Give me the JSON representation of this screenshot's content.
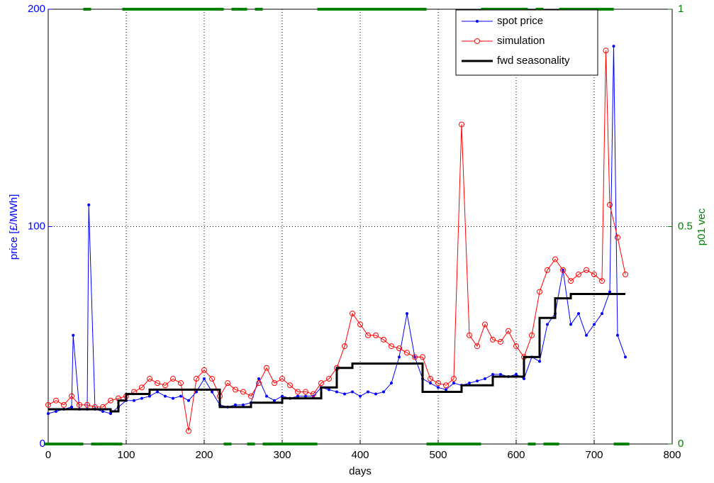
{
  "chart_data": {
    "type": "line",
    "xlabel": "days",
    "ylabel": "price [£/MWh]",
    "y2label": "p01 vec",
    "xlim": [
      0,
      800
    ],
    "xticks": [
      0,
      100,
      200,
      300,
      400,
      500,
      600,
      700,
      800
    ],
    "ylim": [
      0,
      200
    ],
    "yticks": [
      0,
      100,
      200
    ],
    "y2lim": [
      0,
      1
    ],
    "y2ticks": [
      0,
      0.5,
      1
    ],
    "grid": true,
    "legend": "top-right",
    "series": [
      {
        "name": "spot price",
        "color": "#0000ff",
        "marker": "dot",
        "x": [
          0,
          10,
          20,
          30,
          32,
          40,
          50,
          52,
          60,
          70,
          80,
          90,
          100,
          110,
          120,
          130,
          140,
          150,
          160,
          170,
          180,
          190,
          200,
          210,
          220,
          230,
          240,
          250,
          260,
          270,
          280,
          290,
          300,
          310,
          320,
          330,
          340,
          350,
          360,
          370,
          380,
          390,
          400,
          410,
          420,
          430,
          440,
          450,
          460,
          470,
          480,
          490,
          500,
          510,
          520,
          530,
          540,
          550,
          560,
          570,
          580,
          590,
          600,
          610,
          620,
          630,
          640,
          650,
          660,
          670,
          680,
          690,
          700,
          710,
          720,
          725,
          730,
          740
        ],
        "values": [
          14,
          15,
          16,
          17,
          50,
          16,
          16,
          110,
          16,
          15,
          14,
          17,
          20,
          20,
          21,
          22,
          24,
          22,
          21,
          22,
          20,
          24,
          30,
          24,
          18,
          17,
          18,
          18,
          19,
          30,
          22,
          20,
          22,
          21,
          22,
          22,
          22,
          26,
          25,
          24,
          23,
          24,
          22,
          24,
          23,
          24,
          28,
          40,
          60,
          40,
          30,
          28,
          26,
          25,
          28,
          27,
          28,
          29,
          30,
          32,
          32,
          31,
          32,
          30,
          40,
          38,
          55,
          60,
          80,
          55,
          60,
          50,
          55,
          60,
          70,
          183,
          50,
          40
        ]
      },
      {
        "name": "simulation",
        "color": "#ff0000",
        "marker": "circle",
        "x": [
          0,
          10,
          20,
          30,
          40,
          50,
          60,
          70,
          80,
          90,
          100,
          110,
          120,
          130,
          140,
          150,
          160,
          170,
          180,
          190,
          200,
          210,
          220,
          230,
          240,
          250,
          260,
          270,
          280,
          290,
          300,
          310,
          320,
          330,
          340,
          350,
          360,
          370,
          380,
          390,
          400,
          410,
          420,
          430,
          440,
          450,
          460,
          470,
          480,
          490,
          500,
          510,
          520,
          530,
          540,
          550,
          560,
          570,
          580,
          590,
          600,
          610,
          620,
          630,
          640,
          650,
          660,
          670,
          680,
          690,
          700,
          710,
          715,
          720,
          730,
          740
        ],
        "values": [
          18,
          20,
          18,
          22,
          18,
          18,
          17,
          17,
          20,
          21,
          22,
          24,
          26,
          30,
          28,
          27,
          30,
          28,
          6,
          30,
          34,
          30,
          22,
          28,
          25,
          24,
          22,
          28,
          35,
          28,
          30,
          27,
          24,
          24,
          23,
          28,
          30,
          35,
          45,
          60,
          55,
          50,
          50,
          48,
          45,
          44,
          42,
          40,
          40,
          30,
          28,
          27,
          30,
          147,
          50,
          45,
          55,
          48,
          47,
          52,
          45,
          40,
          50,
          70,
          80,
          85,
          80,
          75,
          78,
          80,
          78,
          75,
          181,
          110,
          95,
          78
        ]
      },
      {
        "name": "fwd seasonality",
        "color": "#000000",
        "marker": "none",
        "x": [
          0,
          80,
          80,
          90,
          90,
          100,
          100,
          130,
          130,
          220,
          220,
          260,
          260,
          300,
          300,
          350,
          350,
          370,
          370,
          390,
          390,
          480,
          480,
          530,
          530,
          570,
          570,
          610,
          610,
          630,
          630,
          650,
          650,
          670,
          670,
          740
        ],
        "values": [
          16,
          16,
          15,
          15,
          20,
          20,
          23,
          23,
          25,
          25,
          17,
          17,
          19,
          19,
          21,
          21,
          26,
          26,
          35,
          35,
          37,
          37,
          24,
          24,
          27,
          27,
          31,
          31,
          40,
          40,
          58,
          58,
          67,
          67,
          69,
          69
        ]
      }
    ],
    "p01": {
      "color": "#008000",
      "axis": "y2",
      "x": [
        0,
        10,
        20,
        30,
        40,
        50,
        60,
        70,
        80,
        90,
        100,
        110,
        120,
        130,
        140,
        150,
        160,
        170,
        180,
        190,
        200,
        210,
        220,
        230,
        240,
        250,
        260,
        270,
        280,
        290,
        300,
        310,
        320,
        330,
        340,
        350,
        360,
        370,
        380,
        390,
        400,
        410,
        420,
        430,
        440,
        450,
        460,
        470,
        480,
        490,
        500,
        510,
        520,
        530,
        540,
        550,
        560,
        570,
        580,
        590,
        600,
        610,
        620,
        630,
        640,
        650,
        660,
        670,
        680,
        690,
        700,
        710,
        720,
        730,
        740
      ],
      "values": [
        0,
        0,
        0,
        0,
        0,
        1,
        0,
        0,
        0,
        0,
        1,
        1,
        1,
        1,
        1,
        1,
        1,
        1,
        1,
        1,
        1,
        1,
        1,
        0,
        1,
        1,
        0,
        1,
        0,
        0,
        0,
        0,
        0,
        0,
        0,
        1,
        1,
        1,
        1,
        1,
        1,
        1,
        1,
        1,
        1,
        1,
        1,
        1,
        1,
        0,
        0,
        0,
        0,
        0,
        0,
        0,
        1,
        1,
        1,
        1,
        1,
        1,
        0,
        1,
        0,
        0,
        1,
        1,
        1,
        1,
        1,
        1,
        1,
        0,
        0
      ]
    }
  }
}
